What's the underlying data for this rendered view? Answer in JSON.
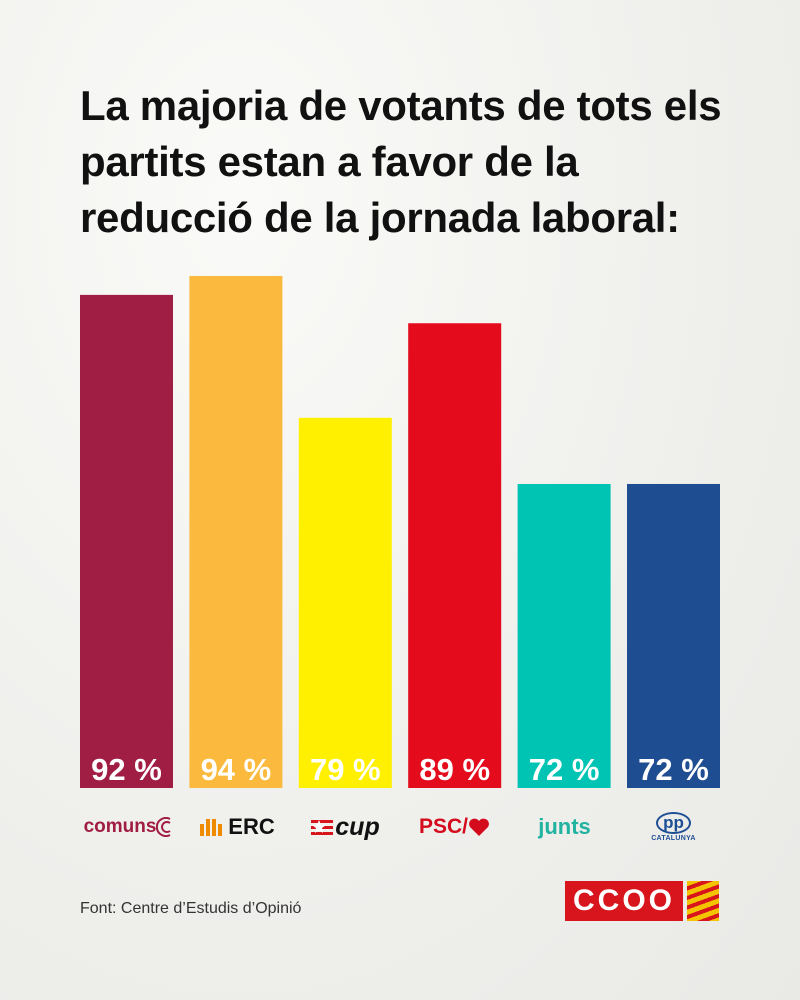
{
  "title": "La majoria de votants de tots els partits estan a favor de la reducció de la jornada laboral:",
  "source": "Font: Centre d’Estudis d’Opinió",
  "chart_data": {
    "type": "bar",
    "categories": [
      "comuns",
      "ERC",
      "CUP",
      "PSC",
      "junts",
      "PP"
    ],
    "values": [
      92,
      94,
      79,
      89,
      72,
      72
    ],
    "labels": [
      "92 %",
      "94 %",
      "79 %",
      "89 %",
      "72 %",
      "72 %"
    ],
    "colors": [
      "#a01d44",
      "#fbba3d",
      "#fff000",
      "#e30b1c",
      "#00c4b3",
      "#1f4d91"
    ],
    "xlabel": "",
    "ylabel": "",
    "grid": false
  },
  "logos": {
    "comuns": "comuns",
    "erc": "ERC",
    "cup": "cup",
    "psc": "PSC/",
    "junts": "junts",
    "pp": "pp",
    "pp_sub": "CATALUNYA",
    "ccoo": "CCOO"
  },
  "icons": {
    "comuns": "concentric-arcs-icon",
    "erc": "erc-stripes-icon",
    "cup": "star-icon",
    "psc": "heart-icon",
    "ccoo": "senyera-flag-icon"
  }
}
